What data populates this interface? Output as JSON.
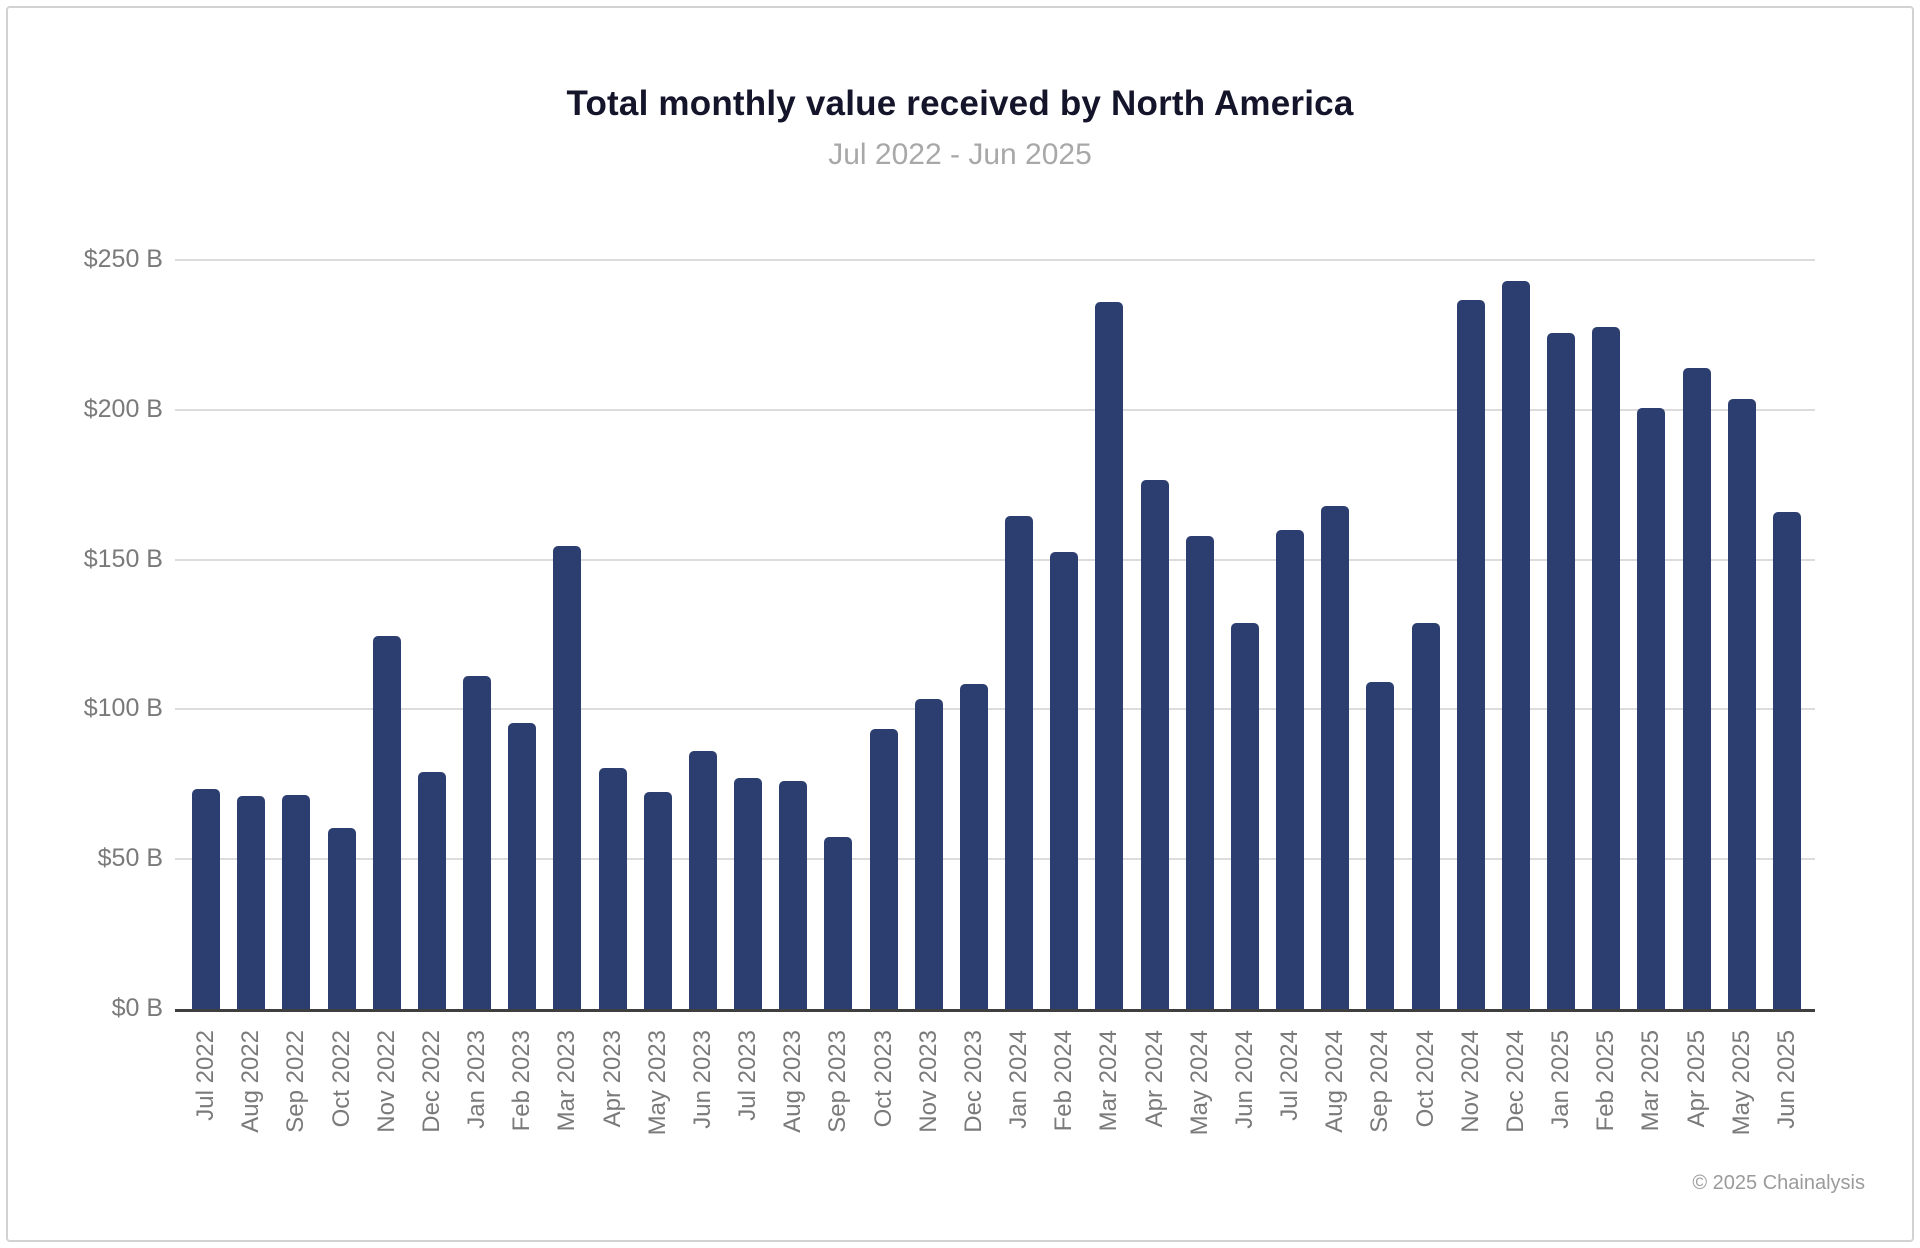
{
  "chart_data": {
    "type": "bar",
    "title": "Total monthly value received by North America",
    "subtitle": "Jul 2022 - Jun 2025",
    "value_unit": "USD billions",
    "categories": [
      "Jul 2022",
      "Aug 2022",
      "Sep 2022",
      "Oct 2022",
      "Nov 2022",
      "Dec 2022",
      "Jan 2023",
      "Feb 2023",
      "Mar 2023",
      "Apr 2023",
      "May 2023",
      "Jun 2023",
      "Jul 2023",
      "Aug 2023",
      "Sep 2023",
      "Oct 2023",
      "Nov 2023",
      "Dec 2023",
      "Jan 2024",
      "Feb 2024",
      "Mar 2024",
      "Apr 2024",
      "May 2024",
      "Jun 2024",
      "Jul 2024",
      "Aug 2024",
      "Sep 2024",
      "Oct 2024",
      "Nov 2024",
      "Dec 2024",
      "Jan 2025",
      "Feb 2025",
      "Mar 2025",
      "Apr 2025",
      "May 2025",
      "Jun 2025"
    ],
    "values": [
      73.5,
      71,
      71.5,
      60.5,
      124.5,
      79,
      111,
      95.5,
      154.5,
      80.5,
      72.5,
      86,
      77,
      76,
      57.5,
      93.5,
      103.5,
      108.5,
      164.5,
      152.5,
      236,
      176.5,
      158,
      129,
      160,
      168,
      109,
      129,
      236.5,
      243,
      225.5,
      227.5,
      200.5,
      214,
      203.5,
      166
    ],
    "ylim": [
      0,
      250
    ],
    "y_tick_values": [
      0,
      50,
      100,
      150,
      200,
      250
    ],
    "y_tick_labels": [
      "$0 B",
      "$50 B",
      "$100 B",
      "$150 B",
      "$200 B",
      "$250 B"
    ],
    "grid": true,
    "legend": "none",
    "bar_color": "#2c3d6f"
  },
  "footer": {
    "attribution": "© 2025 Chainalysis"
  }
}
